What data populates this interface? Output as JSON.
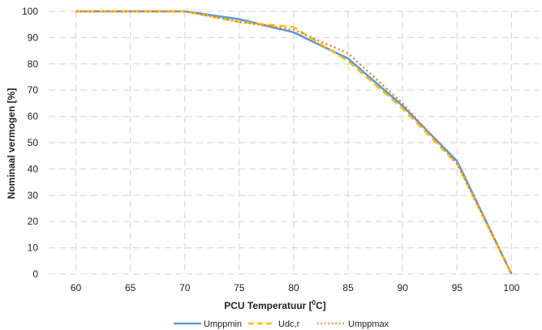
{
  "chart_data": {
    "type": "line",
    "xlabel": "PCU Temperatuur [",
    "xlabel_sup": "0",
    "xlabel_end": "C]",
    "ylabel": "Nominaal vermogen [%]",
    "xlim": [
      57.5,
      102.5
    ],
    "ylim": [
      0,
      100
    ],
    "xticks": [
      "60",
      "65",
      "70",
      "75",
      "80",
      "85",
      "90",
      "95",
      "100"
    ],
    "yticks": [
      "0",
      "10",
      "20",
      "30",
      "40",
      "50",
      "60",
      "70",
      "80",
      "90",
      "100"
    ],
    "grid": true,
    "legend_position": "bottom",
    "series": [
      {
        "name": "Umppmin",
        "color": "#5b9bd5",
        "style": "solid",
        "x": [
          60,
          70,
          75,
          80,
          85,
          90,
          95,
          100
        ],
        "y": [
          100,
          100,
          97,
          92,
          82,
          64,
          43,
          0
        ]
      },
      {
        "name": "Udc,r",
        "color": "#ffc000",
        "style": "dashed",
        "x": [
          60,
          70,
          75,
          80,
          85,
          90,
          95,
          100
        ],
        "y": [
          100,
          100,
          96,
          94,
          81,
          63,
          42,
          0
        ]
      },
      {
        "name": "Umppmax",
        "color": "#ed7d31",
        "style": "dotted",
        "x": [
          60,
          70,
          75,
          80,
          85,
          90,
          95,
          100
        ],
        "y": [
          100,
          100,
          96,
          93,
          84,
          65,
          42,
          0
        ]
      }
    ]
  }
}
